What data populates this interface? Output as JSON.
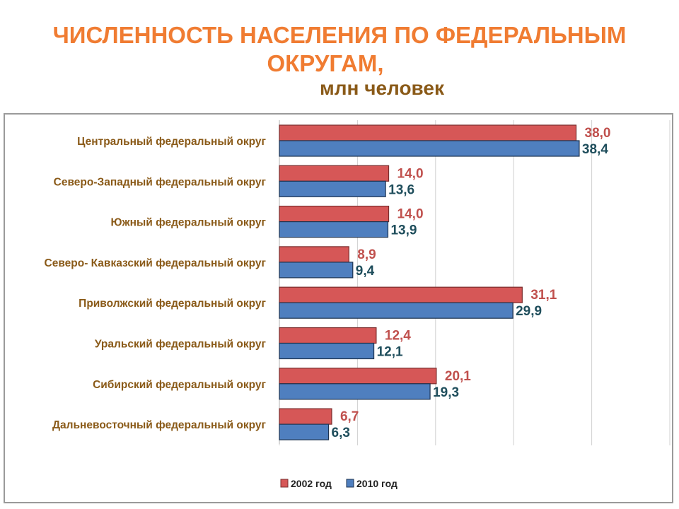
{
  "title": {
    "line1": "ЧИСЛЕННОСТЬ НАСЕЛЕНИЯ ПО ФЕДЕРАЛЬНЫМ",
    "line2": "ОКРУГАМ,",
    "subtitle": "млн человек"
  },
  "colors": {
    "title": "#f07c32",
    "subtitle": "#8a5a18",
    "category_label": "#8a5a18",
    "series_2002": "#d65757",
    "series_2010": "#4f7fbf",
    "label_2002": "#c0504d",
    "label_2010": "#1f4e5c",
    "grid": "#d0d0d0"
  },
  "chart_data": {
    "type": "bar",
    "orientation": "horizontal",
    "categories": [
      "Центральный федеральный округ",
      "Северо-Западный федеральный округ",
      "Южный федеральный округ",
      "Северо- Кавказский федеральный округ",
      "Приволжский федеральный округ",
      "Уральский федеральный округ",
      "Сибирский федеральный округ",
      "Дальневосточный федеральный округ"
    ],
    "series": [
      {
        "name": "2002 год",
        "values": [
          38.0,
          14.0,
          14.0,
          8.9,
          31.1,
          12.4,
          20.1,
          6.7
        ],
        "labels": [
          "38,0",
          "14,0",
          "14,0",
          "8,9",
          "31,1",
          "12,4",
          "20,1",
          "6,7"
        ]
      },
      {
        "name": "2010 год",
        "values": [
          38.4,
          13.6,
          13.9,
          9.4,
          29.9,
          12.1,
          19.3,
          6.3
        ],
        "labels": [
          "38,4",
          "13,6",
          "13,9",
          "9,4",
          "29,9",
          "12,1",
          "19,3",
          "6,3"
        ]
      }
    ],
    "xlim": [
      0,
      50
    ],
    "gridlines": [
      0,
      10,
      20,
      30,
      40,
      50
    ],
    "grid": true,
    "legend": "bottom-center"
  }
}
